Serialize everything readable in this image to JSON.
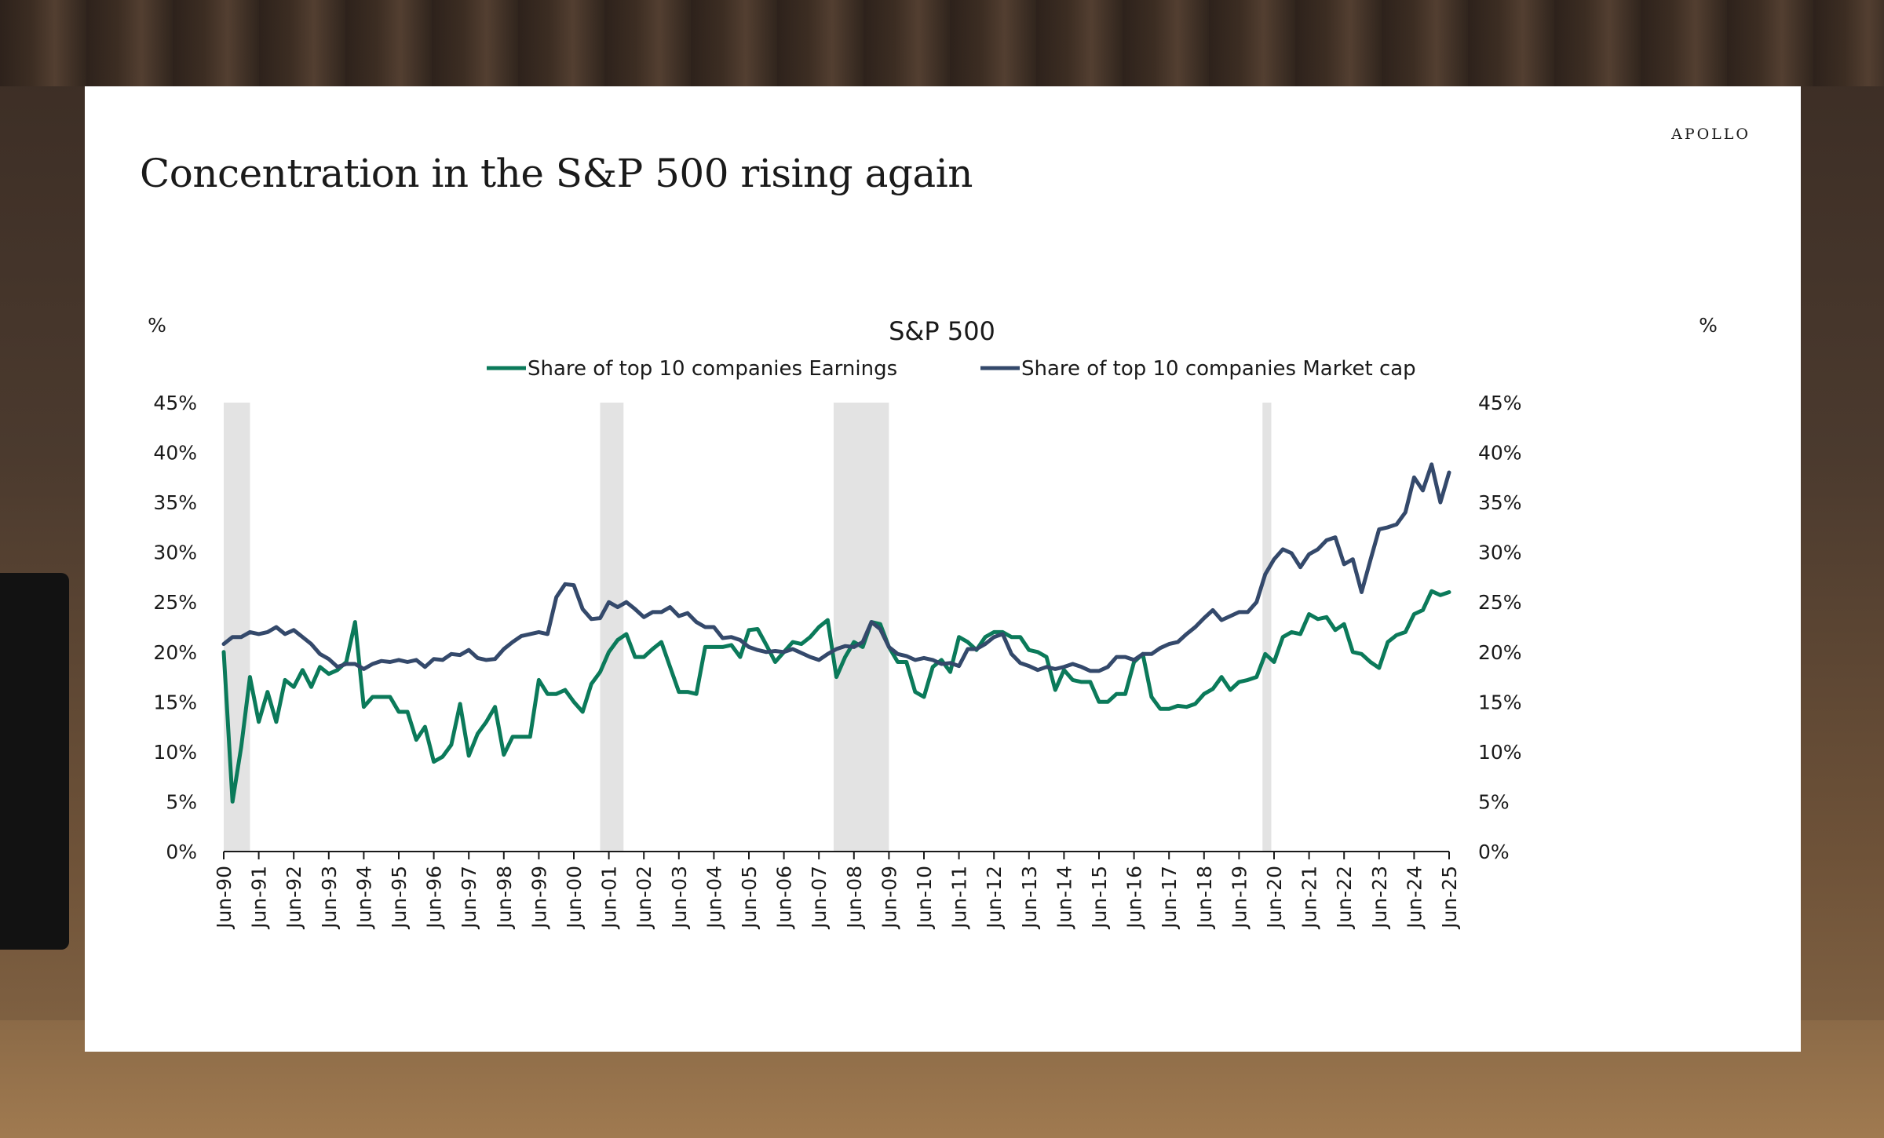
{
  "page": {
    "brand": "APOLLO",
    "headline": "Concentration in the S&P 500 rising again"
  },
  "chart_data": {
    "type": "line",
    "title": "S&P 500",
    "ylabel_left": "%",
    "ylabel_right": "%",
    "ylim": [
      0,
      45
    ],
    "y_ticks": [
      "0%",
      "5%",
      "10%",
      "15%",
      "20%",
      "25%",
      "30%",
      "35%",
      "40%",
      "45%"
    ],
    "x_ticks": [
      "Jun-90",
      "Jun-91",
      "Jun-92",
      "Jun-93",
      "Jun-94",
      "Jun-95",
      "Jun-96",
      "Jun-97",
      "Jun-98",
      "Jun-99",
      "Jun-00",
      "Jun-01",
      "Jun-02",
      "Jun-03",
      "Jun-04",
      "Jun-05",
      "Jun-06",
      "Jun-07",
      "Jun-08",
      "Jun-09",
      "Jun-10",
      "Jun-11",
      "Jun-12",
      "Jun-13",
      "Jun-14",
      "Jun-15",
      "Jun-16",
      "Jun-17",
      "Jun-18",
      "Jun-19",
      "Jun-20",
      "Jun-21",
      "Jun-22",
      "Jun-23",
      "Jun-24",
      "Jun-25"
    ],
    "legend_position": "top-center",
    "grid": false,
    "recessions": [
      [
        1990.5,
        1991.25
      ],
      [
        2001.25,
        2001.92
      ],
      [
        2007.92,
        2009.5
      ],
      [
        2020.17,
        2020.42
      ]
    ],
    "series": [
      {
        "name": "Share of top 10 companies Earnings",
        "color": "#0b7a5a",
        "points": [
          [
            1990.5,
            20
          ],
          [
            1990.75,
            5
          ],
          [
            1991,
            10.5
          ],
          [
            1991.25,
            17.5
          ],
          [
            1991.5,
            13
          ],
          [
            1991.75,
            16
          ],
          [
            1992,
            13
          ],
          [
            1992.25,
            17.2
          ],
          [
            1992.5,
            16.5
          ],
          [
            1992.75,
            18.2
          ],
          [
            1993,
            16.5
          ],
          [
            1993.25,
            18.5
          ],
          [
            1993.5,
            17.8
          ],
          [
            1993.75,
            18.2
          ],
          [
            1994,
            19
          ],
          [
            1994.25,
            23
          ],
          [
            1994.5,
            14.5
          ],
          [
            1994.75,
            15.5
          ],
          [
            1995,
            15.5
          ],
          [
            1995.25,
            15.5
          ],
          [
            1995.5,
            14
          ],
          [
            1995.75,
            14
          ],
          [
            1996,
            11.2
          ],
          [
            1996.25,
            12.5
          ],
          [
            1996.5,
            9
          ],
          [
            1996.75,
            9.5
          ],
          [
            1997,
            10.7
          ],
          [
            1997.25,
            14.8
          ],
          [
            1997.5,
            9.6
          ],
          [
            1997.75,
            11.8
          ],
          [
            1998,
            13
          ],
          [
            1998.25,
            14.5
          ],
          [
            1998.5,
            9.7
          ],
          [
            1998.75,
            11.5
          ],
          [
            1999,
            11.5
          ],
          [
            1999.25,
            11.5
          ],
          [
            1999.5,
            17.2
          ],
          [
            1999.75,
            15.8
          ],
          [
            2000,
            15.8
          ],
          [
            2000.25,
            16.2
          ],
          [
            2000.5,
            15
          ],
          [
            2000.75,
            14
          ],
          [
            2001,
            16.8
          ],
          [
            2001.25,
            18
          ],
          [
            2001.5,
            20
          ],
          [
            2001.75,
            21.2
          ],
          [
            2002,
            21.8
          ],
          [
            2002.25,
            19.5
          ],
          [
            2002.5,
            19.5
          ],
          [
            2002.75,
            20.3
          ],
          [
            2003,
            21
          ],
          [
            2003.25,
            18.5
          ],
          [
            2003.5,
            16
          ],
          [
            2003.75,
            16
          ],
          [
            2004,
            15.8
          ],
          [
            2004.25,
            20.5
          ],
          [
            2004.5,
            20.5
          ],
          [
            2004.75,
            20.5
          ],
          [
            2005,
            20.7
          ],
          [
            2005.25,
            19.5
          ],
          [
            2005.5,
            22.2
          ],
          [
            2005.75,
            22.3
          ],
          [
            2006,
            20.7
          ],
          [
            2006.25,
            19
          ],
          [
            2006.5,
            20
          ],
          [
            2006.75,
            21
          ],
          [
            2007,
            20.8
          ],
          [
            2007.25,
            21.5
          ],
          [
            2007.5,
            22.5
          ],
          [
            2007.75,
            23.2
          ],
          [
            2008,
            17.5
          ],
          [
            2008.25,
            19.5
          ],
          [
            2008.5,
            21
          ],
          [
            2008.75,
            20.5
          ],
          [
            2009,
            23
          ],
          [
            2009.25,
            22.8
          ],
          [
            2009.5,
            20.5
          ],
          [
            2009.75,
            19
          ],
          [
            2010,
            19
          ],
          [
            2010.25,
            16
          ],
          [
            2010.5,
            15.5
          ],
          [
            2010.75,
            18.5
          ],
          [
            2011,
            19.2
          ],
          [
            2011.25,
            18
          ],
          [
            2011.5,
            21.5
          ],
          [
            2011.75,
            21
          ],
          [
            2012,
            20.2
          ],
          [
            2012.25,
            21.5
          ],
          [
            2012.5,
            22
          ],
          [
            2012.75,
            22
          ],
          [
            2013,
            21.5
          ],
          [
            2013.25,
            21.5
          ],
          [
            2013.5,
            20.2
          ],
          [
            2013.75,
            20
          ],
          [
            2014,
            19.5
          ],
          [
            2014.25,
            16.2
          ],
          [
            2014.5,
            18.2
          ],
          [
            2014.75,
            17.2
          ],
          [
            2015,
            17
          ],
          [
            2015.25,
            17
          ],
          [
            2015.5,
            15
          ],
          [
            2015.75,
            15
          ],
          [
            2016,
            15.8
          ],
          [
            2016.25,
            15.8
          ],
          [
            2016.5,
            19
          ],
          [
            2016.75,
            19.8
          ],
          [
            2017,
            15.5
          ],
          [
            2017.25,
            14.3
          ],
          [
            2017.5,
            14.3
          ],
          [
            2017.75,
            14.6
          ],
          [
            2018,
            14.5
          ],
          [
            2018.25,
            14.8
          ],
          [
            2018.5,
            15.8
          ],
          [
            2018.75,
            16.3
          ],
          [
            2019,
            17.5
          ],
          [
            2019.25,
            16.2
          ],
          [
            2019.5,
            17
          ],
          [
            2019.75,
            17.2
          ],
          [
            2020,
            17.5
          ],
          [
            2020.25,
            19.8
          ],
          [
            2020.5,
            19
          ],
          [
            2020.75,
            21.5
          ],
          [
            2021,
            22
          ],
          [
            2021.25,
            21.8
          ],
          [
            2021.5,
            23.8
          ],
          [
            2021.75,
            23.3
          ],
          [
            2022,
            23.5
          ],
          [
            2022.25,
            22.2
          ],
          [
            2022.5,
            22.8
          ],
          [
            2022.75,
            20
          ],
          [
            2023,
            19.8
          ],
          [
            2023.25,
            19
          ],
          [
            2023.5,
            18.4
          ],
          [
            2023.75,
            21
          ],
          [
            2024,
            21.7
          ],
          [
            2024.25,
            22
          ],
          [
            2024.5,
            23.8
          ],
          [
            2024.75,
            24.2
          ],
          [
            2025,
            26.1
          ],
          [
            2025.25,
            25.7
          ],
          [
            2025.5,
            26
          ]
        ]
      },
      {
        "name": "Share of top 10 companies Market cap",
        "color": "#34496b",
        "points": [
          [
            1990.5,
            20.8
          ],
          [
            1990.75,
            21.5
          ],
          [
            1991,
            21.5
          ],
          [
            1991.25,
            22
          ],
          [
            1991.5,
            21.8
          ],
          [
            1991.75,
            22
          ],
          [
            1992,
            22.5
          ],
          [
            1992.25,
            21.8
          ],
          [
            1992.5,
            22.2
          ],
          [
            1992.75,
            21.5
          ],
          [
            1993,
            20.8
          ],
          [
            1993.25,
            19.8
          ],
          [
            1993.5,
            19.3
          ],
          [
            1993.75,
            18.5
          ],
          [
            1994,
            18.8
          ],
          [
            1994.25,
            18.8
          ],
          [
            1994.5,
            18.3
          ],
          [
            1994.75,
            18.8
          ],
          [
            1995,
            19.1
          ],
          [
            1995.25,
            19
          ],
          [
            1995.5,
            19.2
          ],
          [
            1995.75,
            19
          ],
          [
            1996,
            19.2
          ],
          [
            1996.25,
            18.5
          ],
          [
            1996.5,
            19.3
          ],
          [
            1996.75,
            19.2
          ],
          [
            1997,
            19.8
          ],
          [
            1997.25,
            19.7
          ],
          [
            1997.5,
            20.2
          ],
          [
            1997.75,
            19.4
          ],
          [
            1998,
            19.2
          ],
          [
            1998.25,
            19.3
          ],
          [
            1998.5,
            20.3
          ],
          [
            1998.75,
            21
          ],
          [
            1999,
            21.6
          ],
          [
            1999.25,
            21.8
          ],
          [
            1999.5,
            22
          ],
          [
            1999.75,
            21.8
          ],
          [
            2000,
            25.5
          ],
          [
            2000.25,
            26.8
          ],
          [
            2000.5,
            26.7
          ],
          [
            2000.75,
            24.3
          ],
          [
            2001,
            23.3
          ],
          [
            2001.25,
            23.4
          ],
          [
            2001.5,
            25
          ],
          [
            2001.75,
            24.5
          ],
          [
            2002,
            25
          ],
          [
            2002.25,
            24.3
          ],
          [
            2002.5,
            23.5
          ],
          [
            2002.75,
            24
          ],
          [
            2003,
            24
          ],
          [
            2003.25,
            24.5
          ],
          [
            2003.5,
            23.6
          ],
          [
            2003.75,
            23.9
          ],
          [
            2004,
            23
          ],
          [
            2004.25,
            22.5
          ],
          [
            2004.5,
            22.5
          ],
          [
            2004.75,
            21.4
          ],
          [
            2005,
            21.5
          ],
          [
            2005.25,
            21.2
          ],
          [
            2005.5,
            20.5
          ],
          [
            2005.75,
            20.2
          ],
          [
            2006,
            20
          ],
          [
            2006.25,
            20.1
          ],
          [
            2006.5,
            20
          ],
          [
            2006.75,
            20.3
          ],
          [
            2007,
            19.9
          ],
          [
            2007.25,
            19.5
          ],
          [
            2007.5,
            19.2
          ],
          [
            2007.75,
            19.8
          ],
          [
            2008,
            20.3
          ],
          [
            2008.25,
            20.6
          ],
          [
            2008.5,
            20.5
          ],
          [
            2008.75,
            21
          ],
          [
            2009,
            23
          ],
          [
            2009.25,
            22.3
          ],
          [
            2009.5,
            20.5
          ],
          [
            2009.75,
            19.8
          ],
          [
            2010,
            19.6
          ],
          [
            2010.25,
            19.2
          ],
          [
            2010.5,
            19.4
          ],
          [
            2010.75,
            19.2
          ],
          [
            2011,
            18.8
          ],
          [
            2011.25,
            18.9
          ],
          [
            2011.5,
            18.6
          ],
          [
            2011.75,
            20.3
          ],
          [
            2012,
            20.3
          ],
          [
            2012.25,
            20.8
          ],
          [
            2012.5,
            21.5
          ],
          [
            2012.75,
            21.8
          ],
          [
            2013,
            19.8
          ],
          [
            2013.25,
            18.9
          ],
          [
            2013.5,
            18.6
          ],
          [
            2013.75,
            18.2
          ],
          [
            2014,
            18.5
          ],
          [
            2014.25,
            18.3
          ],
          [
            2014.5,
            18.5
          ],
          [
            2014.75,
            18.8
          ],
          [
            2015,
            18.5
          ],
          [
            2015.25,
            18.1
          ],
          [
            2015.5,
            18.1
          ],
          [
            2015.75,
            18.5
          ],
          [
            2016,
            19.5
          ],
          [
            2016.25,
            19.5
          ],
          [
            2016.5,
            19.2
          ],
          [
            2016.75,
            19.8
          ],
          [
            2017,
            19.8
          ],
          [
            2017.25,
            20.4
          ],
          [
            2017.5,
            20.8
          ],
          [
            2017.75,
            21
          ],
          [
            2018,
            21.8
          ],
          [
            2018.25,
            22.5
          ],
          [
            2018.5,
            23.4
          ],
          [
            2018.75,
            24.2
          ],
          [
            2019,
            23.2
          ],
          [
            2019.25,
            23.6
          ],
          [
            2019.5,
            24
          ],
          [
            2019.75,
            24
          ],
          [
            2020,
            25
          ],
          [
            2020.25,
            27.8
          ],
          [
            2020.5,
            29.3
          ],
          [
            2020.75,
            30.3
          ],
          [
            2021,
            29.9
          ],
          [
            2021.25,
            28.5
          ],
          [
            2021.5,
            29.8
          ],
          [
            2021.75,
            30.3
          ],
          [
            2022,
            31.2
          ],
          [
            2022.25,
            31.5
          ],
          [
            2022.5,
            28.8
          ],
          [
            2022.75,
            29.3
          ],
          [
            2023,
            26
          ],
          [
            2023.25,
            29.2
          ],
          [
            2023.5,
            32.3
          ],
          [
            2023.75,
            32.5
          ],
          [
            2024,
            32.8
          ],
          [
            2024.25,
            34
          ],
          [
            2024.5,
            37.5
          ],
          [
            2024.75,
            36.2
          ],
          [
            2025,
            38.8
          ],
          [
            2025.25,
            35
          ],
          [
            2025.5,
            38
          ]
        ]
      }
    ]
  }
}
